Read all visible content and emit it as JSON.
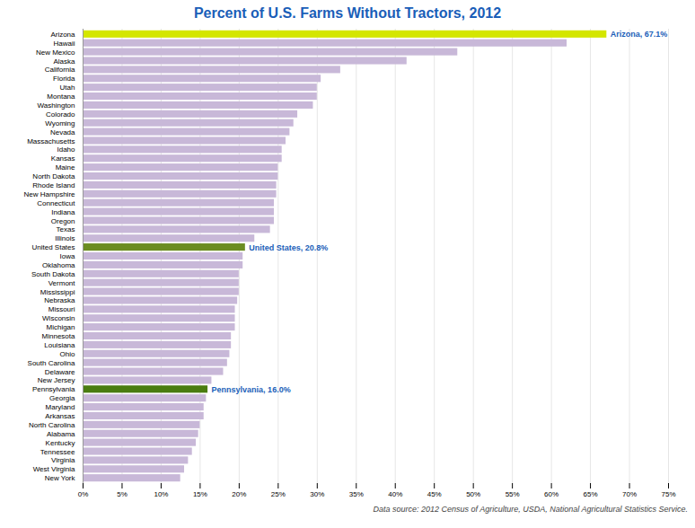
{
  "chart_data": {
    "type": "bar",
    "orientation": "horizontal",
    "title": "Percent of U.S. Farms Without Tractors, 2012",
    "source": "Data source: 2012 Census of Agriculture, USDA, National Agricultural Statistics Service.",
    "categories": [
      "Arizona",
      "Hawaii",
      "New Mexico",
      "Alaska",
      "California",
      "Florida",
      "Utah",
      "Montana",
      "Washington",
      "Colorado",
      "Wyoming",
      "Nevada",
      "Massachusetts",
      "Idaho",
      "Kansas",
      "Maine",
      "North Dakota",
      "Rhode Island",
      "New Hampshire",
      "Connecticut",
      "Indiana",
      "Oregon",
      "Texas",
      "Illinois",
      "United States",
      "Iowa",
      "Oklahoma",
      "South Dakota",
      "Vermont",
      "Mississippi",
      "Nebraska",
      "Missouri",
      "Wisconsin",
      "Michigan",
      "Minnesota",
      "Louisiana",
      "Ohio",
      "South Carolina",
      "Delaware",
      "New Jersey",
      "Pennsylvania",
      "Georgia",
      "Maryland",
      "Arkansas",
      "North Carolina",
      "Alabama",
      "Kentucky",
      "Tennessee",
      "Virginia",
      "West Virginia",
      "New York"
    ],
    "values": [
      67.1,
      62.0,
      48.0,
      41.5,
      33.0,
      30.5,
      30.0,
      30.0,
      29.5,
      27.5,
      27.0,
      26.5,
      26.0,
      25.5,
      25.5,
      25.0,
      25.0,
      24.8,
      24.8,
      24.5,
      24.5,
      24.5,
      24.0,
      22.0,
      20.8,
      20.5,
      20.5,
      20.0,
      20.0,
      20.0,
      19.8,
      19.5,
      19.5,
      19.5,
      19.0,
      19.0,
      18.8,
      18.5,
      18.0,
      16.5,
      16.0,
      15.8,
      15.5,
      15.5,
      15.0,
      14.8,
      14.5,
      14.0,
      13.5,
      13.0,
      12.5
    ],
    "colors": [
      "#d4e600",
      "#c8b8d8",
      "#c8b8d8",
      "#c8b8d8",
      "#c8b8d8",
      "#c8b8d8",
      "#c8b8d8",
      "#c8b8d8",
      "#c8b8d8",
      "#c8b8d8",
      "#c8b8d8",
      "#c8b8d8",
      "#c8b8d8",
      "#c8b8d8",
      "#c8b8d8",
      "#c8b8d8",
      "#c8b8d8",
      "#c8b8d8",
      "#c8b8d8",
      "#c8b8d8",
      "#c8b8d8",
      "#c8b8d8",
      "#c8b8d8",
      "#c8b8d8",
      "#6b8c21",
      "#c8b8d8",
      "#c8b8d8",
      "#c8b8d8",
      "#c8b8d8",
      "#c8b8d8",
      "#c8b8d8",
      "#c8b8d8",
      "#c8b8d8",
      "#c8b8d8",
      "#c8b8d8",
      "#c8b8d8",
      "#c8b8d8",
      "#c8b8d8",
      "#c8b8d8",
      "#c8b8d8",
      "#4a7c10",
      "#c8b8d8",
      "#c8b8d8",
      "#c8b8d8",
      "#c8b8d8",
      "#c8b8d8",
      "#c8b8d8",
      "#c8b8d8",
      "#c8b8d8",
      "#c8b8d8",
      "#c8b8d8"
    ],
    "annotations": [
      {
        "text": "Arizona, 67.1%",
        "category": "Arizona",
        "color": "#1a5eb8"
      },
      {
        "text": "United States, 20.8%",
        "category": "United States",
        "color": "#1a5eb8"
      },
      {
        "text": "Pennsylvania, 16.0%",
        "category": "Pennsylvania",
        "color": "#1a5eb8"
      }
    ],
    "xlim": [
      0,
      75
    ],
    "xticks": [
      {
        "value": 0,
        "label": "0%"
      },
      {
        "value": 5,
        "label": "5%"
      },
      {
        "value": 10,
        "label": "10%"
      },
      {
        "value": 15,
        "label": "15%"
      },
      {
        "value": 20,
        "label": "20%"
      },
      {
        "value": 25,
        "label": "25%"
      },
      {
        "value": 30,
        "label": "30%"
      },
      {
        "value": 35,
        "label": "35%"
      },
      {
        "value": 40,
        "label": "40%"
      },
      {
        "value": 45,
        "label": "45%"
      },
      {
        "value": 50,
        "label": "50%"
      },
      {
        "value": 55,
        "label": "55%"
      },
      {
        "value": 60,
        "label": "60%"
      },
      {
        "value": 65,
        "label": "65%"
      },
      {
        "value": 70,
        "label": "70%"
      },
      {
        "value": 75,
        "label": "75%"
      }
    ],
    "grid": true
  }
}
